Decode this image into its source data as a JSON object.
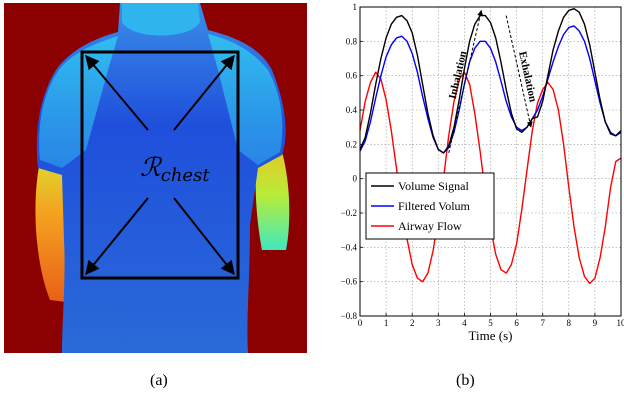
{
  "panel_a": {
    "caption": "(a)",
    "region_label": "ℛ",
    "region_label_subscript": "chest",
    "colors": {
      "background": "#8b0000",
      "body_main": "#1a5ccf",
      "body_chest": "#1f3fd8",
      "body_edge": "#22a8ee",
      "arm_warm": "#f07a1a",
      "arm_mid": "#c6ee2a"
    }
  },
  "panel_b": {
    "caption": "(b)"
  },
  "chart_data": {
    "type": "line",
    "xlabel": "Time (s)",
    "ylabel": "",
    "xlim": [
      0,
      10
    ],
    "ylim": [
      -0.8,
      1
    ],
    "xticks": [
      0,
      1,
      2,
      3,
      4,
      5,
      6,
      7,
      8,
      9,
      10
    ],
    "yticks": [
      -0.8,
      -0.6,
      -0.4,
      -0.2,
      0,
      0.2,
      0.4,
      0.6,
      0.8,
      1
    ],
    "grid": true,
    "legend_position": "bottom-left",
    "annotations": [
      {
        "text": "Inhalation",
        "from": [
          3.4,
          0.15
        ],
        "to": [
          4.65,
          0.98
        ]
      },
      {
        "text": "Exhalation",
        "from": [
          5.6,
          0.95
        ],
        "to": [
          6.55,
          0.3
        ]
      }
    ],
    "series": [
      {
        "name": "Volume Signal",
        "color": "#000000",
        "x": [
          0,
          0.2,
          0.4,
          0.6,
          0.8,
          1.0,
          1.2,
          1.4,
          1.6,
          1.8,
          2.0,
          2.2,
          2.4,
          2.6,
          2.8,
          3.0,
          3.2,
          3.4,
          3.6,
          3.8,
          4.0,
          4.2,
          4.4,
          4.6,
          4.8,
          5.0,
          5.2,
          5.4,
          5.6,
          5.8,
          6.0,
          6.2,
          6.4,
          6.6,
          6.8,
          7.0,
          7.2,
          7.4,
          7.6,
          7.8,
          8.0,
          8.2,
          8.4,
          8.6,
          8.8,
          9.0,
          9.2,
          9.4,
          9.6,
          9.8,
          10.0
        ],
        "y": [
          0.17,
          0.24,
          0.38,
          0.55,
          0.7,
          0.82,
          0.9,
          0.94,
          0.95,
          0.92,
          0.85,
          0.72,
          0.55,
          0.38,
          0.25,
          0.17,
          0.15,
          0.19,
          0.3,
          0.46,
          0.64,
          0.8,
          0.9,
          0.95,
          0.95,
          0.91,
          0.82,
          0.68,
          0.52,
          0.38,
          0.29,
          0.27,
          0.3,
          0.35,
          0.36,
          0.45,
          0.6,
          0.75,
          0.86,
          0.94,
          0.98,
          0.99,
          0.97,
          0.9,
          0.78,
          0.62,
          0.46,
          0.33,
          0.26,
          0.25,
          0.28
        ]
      },
      {
        "name": "Filtered Volum",
        "color": "#0000ff",
        "x": [
          0,
          0.2,
          0.4,
          0.6,
          0.8,
          1.0,
          1.2,
          1.4,
          1.6,
          1.8,
          2.0,
          2.2,
          2.4,
          2.6,
          2.8,
          3.0,
          3.2,
          3.4,
          3.6,
          3.8,
          4.0,
          4.2,
          4.4,
          4.6,
          4.8,
          5.0,
          5.2,
          5.4,
          5.6,
          5.8,
          6.0,
          6.2,
          6.4,
          6.6,
          6.8,
          7.0,
          7.2,
          7.4,
          7.6,
          7.8,
          8.0,
          8.2,
          8.4,
          8.6,
          8.8,
          9.0,
          9.2,
          9.4,
          9.6,
          9.8,
          10.0
        ],
        "y": [
          0.16,
          0.22,
          0.33,
          0.47,
          0.6,
          0.71,
          0.78,
          0.82,
          0.83,
          0.8,
          0.73,
          0.62,
          0.48,
          0.35,
          0.24,
          0.17,
          0.15,
          0.18,
          0.27,
          0.4,
          0.55,
          0.68,
          0.76,
          0.8,
          0.8,
          0.76,
          0.68,
          0.57,
          0.45,
          0.36,
          0.3,
          0.28,
          0.3,
          0.35,
          0.4,
          0.48,
          0.58,
          0.68,
          0.77,
          0.84,
          0.88,
          0.89,
          0.86,
          0.8,
          0.7,
          0.57,
          0.44,
          0.33,
          0.27,
          0.25,
          0.27
        ]
      },
      {
        "name": "Airway Flow",
        "color": "#ff0000",
        "x": [
          0,
          0.2,
          0.4,
          0.6,
          0.8,
          1.0,
          1.2,
          1.4,
          1.6,
          1.8,
          2.0,
          2.2,
          2.4,
          2.6,
          2.8,
          3.0,
          3.2,
          3.4,
          3.6,
          3.8,
          4.0,
          4.2,
          4.4,
          4.6,
          4.8,
          5.0,
          5.2,
          5.4,
          5.6,
          5.8,
          6.0,
          6.2,
          6.4,
          6.6,
          6.8,
          7.0,
          7.2,
          7.4,
          7.6,
          7.8,
          8.0,
          8.2,
          8.4,
          8.6,
          8.8,
          9.0,
          9.2,
          9.4,
          9.6,
          9.8,
          10.0
        ],
        "y": [
          0.28,
          0.45,
          0.56,
          0.62,
          0.58,
          0.46,
          0.28,
          0.06,
          -0.16,
          -0.35,
          -0.5,
          -0.58,
          -0.6,
          -0.55,
          -0.42,
          -0.22,
          0.0,
          0.25,
          0.45,
          0.58,
          0.62,
          0.55,
          0.38,
          0.16,
          -0.08,
          -0.28,
          -0.44,
          -0.53,
          -0.55,
          -0.5,
          -0.38,
          -0.18,
          0.05,
          0.28,
          0.44,
          0.52,
          0.56,
          0.52,
          0.4,
          0.2,
          -0.05,
          -0.28,
          -0.46,
          -0.57,
          -0.61,
          -0.58,
          -0.46,
          -0.28,
          -0.05,
          0.1,
          0.12
        ]
      }
    ]
  }
}
